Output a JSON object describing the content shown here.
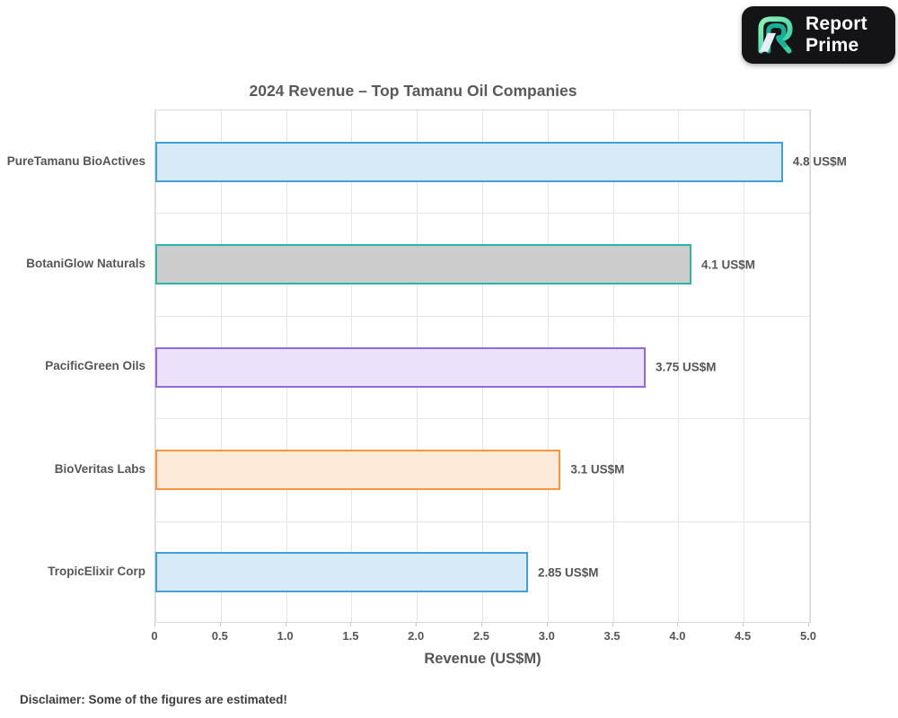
{
  "logo": {
    "brand_line1": "Report",
    "brand_line2": "Prime"
  },
  "chart_data": {
    "type": "bar",
    "orientation": "horizontal",
    "title": "2024 Revenue – Top Tamanu Oil Companies",
    "xlabel": "Revenue (US$M)",
    "xlim": [
      0,
      5.0
    ],
    "grid": true,
    "x_ticks": [
      0,
      0.5,
      1.0,
      1.5,
      2.0,
      2.5,
      3.0,
      3.5,
      4.0,
      4.5,
      5.0
    ],
    "x_tick_labels": [
      "0",
      "0.5",
      "1.0",
      "1.5",
      "2.0",
      "2.5",
      "3.0",
      "3.5",
      "4.0",
      "4.5",
      "5.0"
    ],
    "categories": [
      "PureTamanu BioActives",
      "BotaniGlow Naturals",
      "PacificGreen Oils",
      "BioVeritas Labs",
      "TropicElixir Corp"
    ],
    "values": [
      4.8,
      4.1,
      3.75,
      3.1,
      2.85
    ],
    "value_labels": [
      "4.8 US$M",
      "4.1 US$M",
      "3.75 US$M",
      "3.1 US$M",
      "2.85 US$M"
    ],
    "bar_styles": [
      {
        "fill": "#d6eaf8",
        "border": "#41a0dc"
      },
      {
        "fill": "#cccccc",
        "border": "#2fb3ae"
      },
      {
        "fill": "#ebe1fa",
        "border": "#9168dd"
      },
      {
        "fill": "#fdead8",
        "border": "#f5953c"
      },
      {
        "fill": "#d6eaf8",
        "border": "#41a0dc"
      }
    ]
  },
  "footer": {
    "disclaimer": "Disclaimer: Some of the figures are estimated!"
  }
}
